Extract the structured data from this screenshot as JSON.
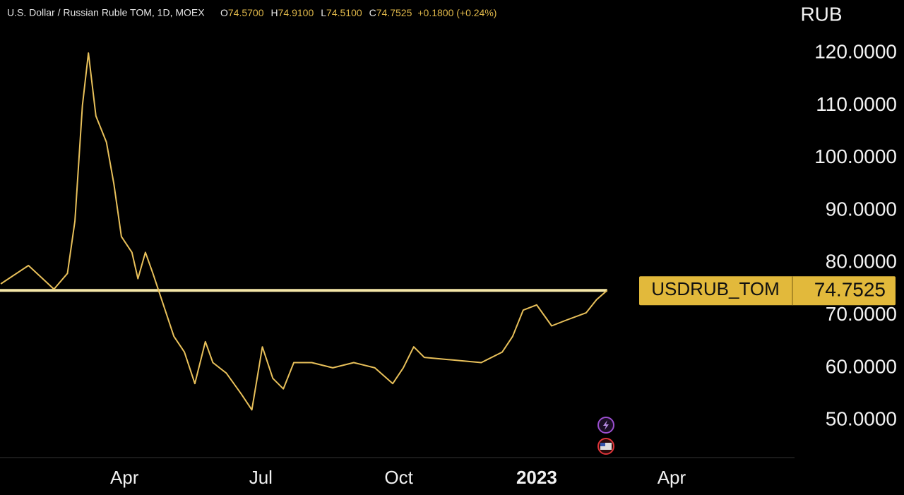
{
  "chart_data": {
    "type": "line",
    "title": "U.S. Dollar / Russian Ruble TOM, 1D, MOEX",
    "ohlc": [
      {
        "label": "O",
        "value": "74.5700"
      },
      {
        "label": "H",
        "value": "74.9100"
      },
      {
        "label": "L",
        "value": "74.5100"
      },
      {
        "label": "C",
        "value": "74.7525"
      }
    ],
    "change": "+0.1800 (+0.24%)",
    "y_label": "RUB",
    "color": "#e8c05a",
    "x": [
      7.5,
      26,
      43,
      52,
      57,
      62,
      66,
      71,
      78,
      83,
      88,
      95,
      99,
      104,
      109,
      116,
      123,
      130,
      137,
      144,
      149,
      158,
      168,
      175,
      182,
      189,
      196,
      203,
      215,
      229,
      243,
      257,
      269,
      276,
      283,
      290,
      309,
      328,
      342,
      349,
      356,
      365,
      375,
      384,
      398,
      405,
      412
    ],
    "values": [
      76,
      79.5,
      75,
      78,
      88,
      110,
      120,
      108,
      103,
      95,
      85,
      82,
      77,
      82,
      78,
      72,
      66,
      63,
      57,
      65,
      61,
      59,
      55,
      52,
      64,
      58,
      56,
      61,
      61,
      60,
      61,
      60,
      57,
      60,
      64,
      62,
      61.5,
      61,
      63,
      66,
      71,
      72,
      68,
      69,
      70.5,
      73,
      74.7525
    ],
    "price_line": {
      "name": "USDRUB_TOM",
      "value": 74.7525
    },
    "xlim": [
      7,
      537
    ],
    "xticks": [
      {
        "value": 90,
        "label": "Apr"
      },
      {
        "value": 181,
        "label": "Jul"
      },
      {
        "value": 273,
        "label": "Oct"
      },
      {
        "value": 365,
        "label": "2023"
      },
      {
        "value": 455,
        "label": "Apr"
      }
    ],
    "ylim": [
      42.9,
      130.1
    ],
    "yticks": [
      {
        "value": 50,
        "label": "50.0000"
      },
      {
        "value": 60,
        "label": "60.0000"
      },
      {
        "value": 70,
        "label": "70.0000"
      },
      {
        "value": 80,
        "label": "80.0000"
      },
      {
        "value": 90,
        "label": "90.0000"
      },
      {
        "value": 100,
        "label": "100.0000"
      },
      {
        "value": 110,
        "label": "110.0000"
      },
      {
        "value": 120,
        "label": "120.0000"
      }
    ]
  }
}
